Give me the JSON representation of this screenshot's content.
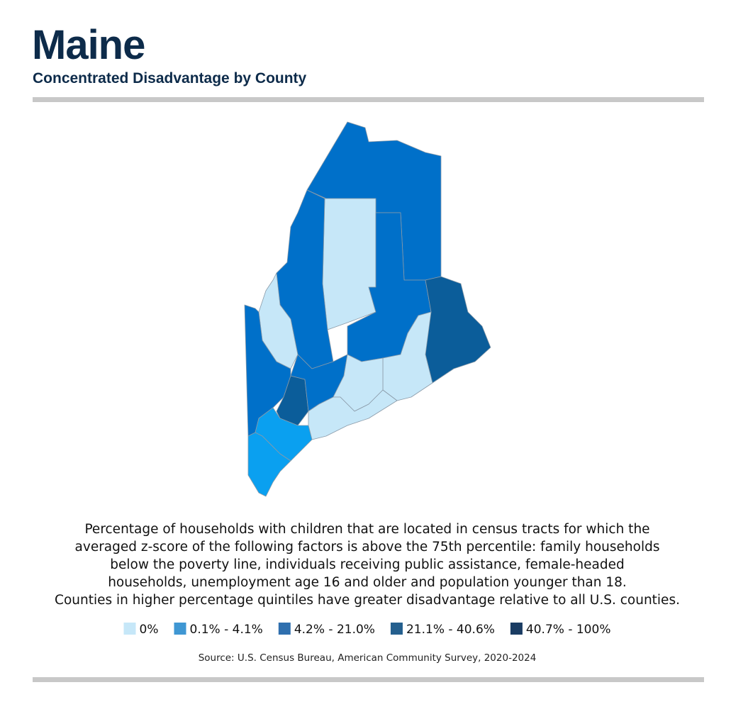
{
  "header": {
    "title": "Maine",
    "subtitle": "Concentrated Disadvantage by County"
  },
  "description": [
    "Percentage of households with children that are located in census tracts for which the",
    "averaged z-score of the following factors is above the 75th percentile: family households",
    "below the poverty line, individuals receiving public assistance, female-headed",
    "households, unemployment age 16 and older and population younger than 18.",
    "Counties in higher percentage quintiles have greater disadvantage relative to all U.S. counties."
  ],
  "legend": [
    {
      "label": "0%",
      "color": "#c6e7f8"
    },
    {
      "label": "0.1% - 4.1%",
      "color": "#3f97d3"
    },
    {
      "label": "4.2% - 21.0%",
      "color": "#2f6fae"
    },
    {
      "label": "21.1% - 40.6%",
      "color": "#245f8e"
    },
    {
      "label": "40.7% - 100%",
      "color": "#1a3c63"
    }
  ],
  "source": "Source: U.S. Census Bureau, American Community Survey, 2020-2024"
}
